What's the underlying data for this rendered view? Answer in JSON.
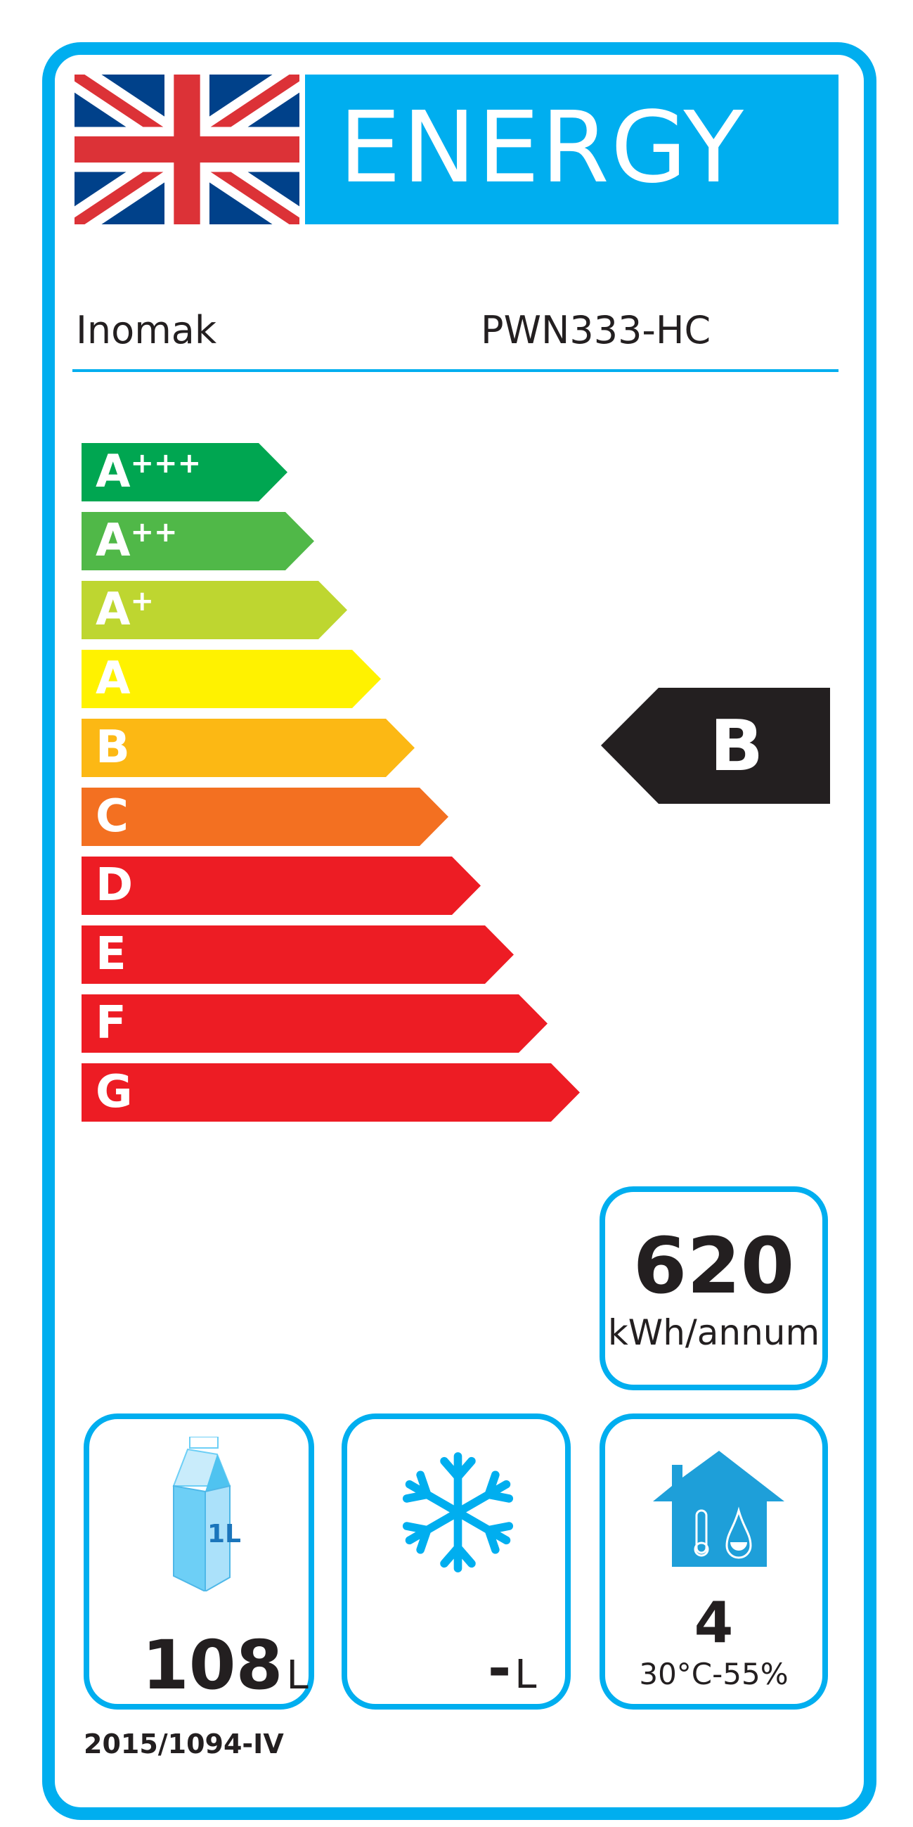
{
  "header": {
    "title": "ENERGY",
    "flag_icon": "uk-flag-icon"
  },
  "supplier": "Inomak",
  "model": "PWN333-HC",
  "classes": [
    {
      "label": "A",
      "sup": "+++",
      "color": "#00a651"
    },
    {
      "label": "A",
      "sup": "++",
      "color": "#50b848"
    },
    {
      "label": "A",
      "sup": "+",
      "color": "#bed630"
    },
    {
      "label": "A",
      "sup": "",
      "color": "#fff200"
    },
    {
      "label": "B",
      "sup": "",
      "color": "#fcb814"
    },
    {
      "label": "C",
      "sup": "",
      "color": "#f37021"
    },
    {
      "label": "D",
      "sup": "",
      "color": "#ed1c24"
    },
    {
      "label": "E",
      "sup": "",
      "color": "#ed1c24"
    },
    {
      "label": "F",
      "sup": "",
      "color": "#ed1c24"
    },
    {
      "label": "G",
      "sup": "",
      "color": "#ed1c24"
    }
  ],
  "rating": {
    "class": "B",
    "color": "#231f20"
  },
  "consumption": {
    "value": "620",
    "unit": "kWh/annum"
  },
  "fresh_volume": {
    "value": "108",
    "unit": "L",
    "icon": "milk-carton-icon",
    "icon_label": "1L"
  },
  "frozen_volume": {
    "value": "-",
    "unit": "L",
    "icon": "snowflake-icon"
  },
  "climate": {
    "value": "4",
    "conditions": "30°C-55%",
    "icon": "house-climate-icon"
  },
  "regulation": "2015/1094-IV",
  "colors": {
    "accent": "#00aeef"
  }
}
